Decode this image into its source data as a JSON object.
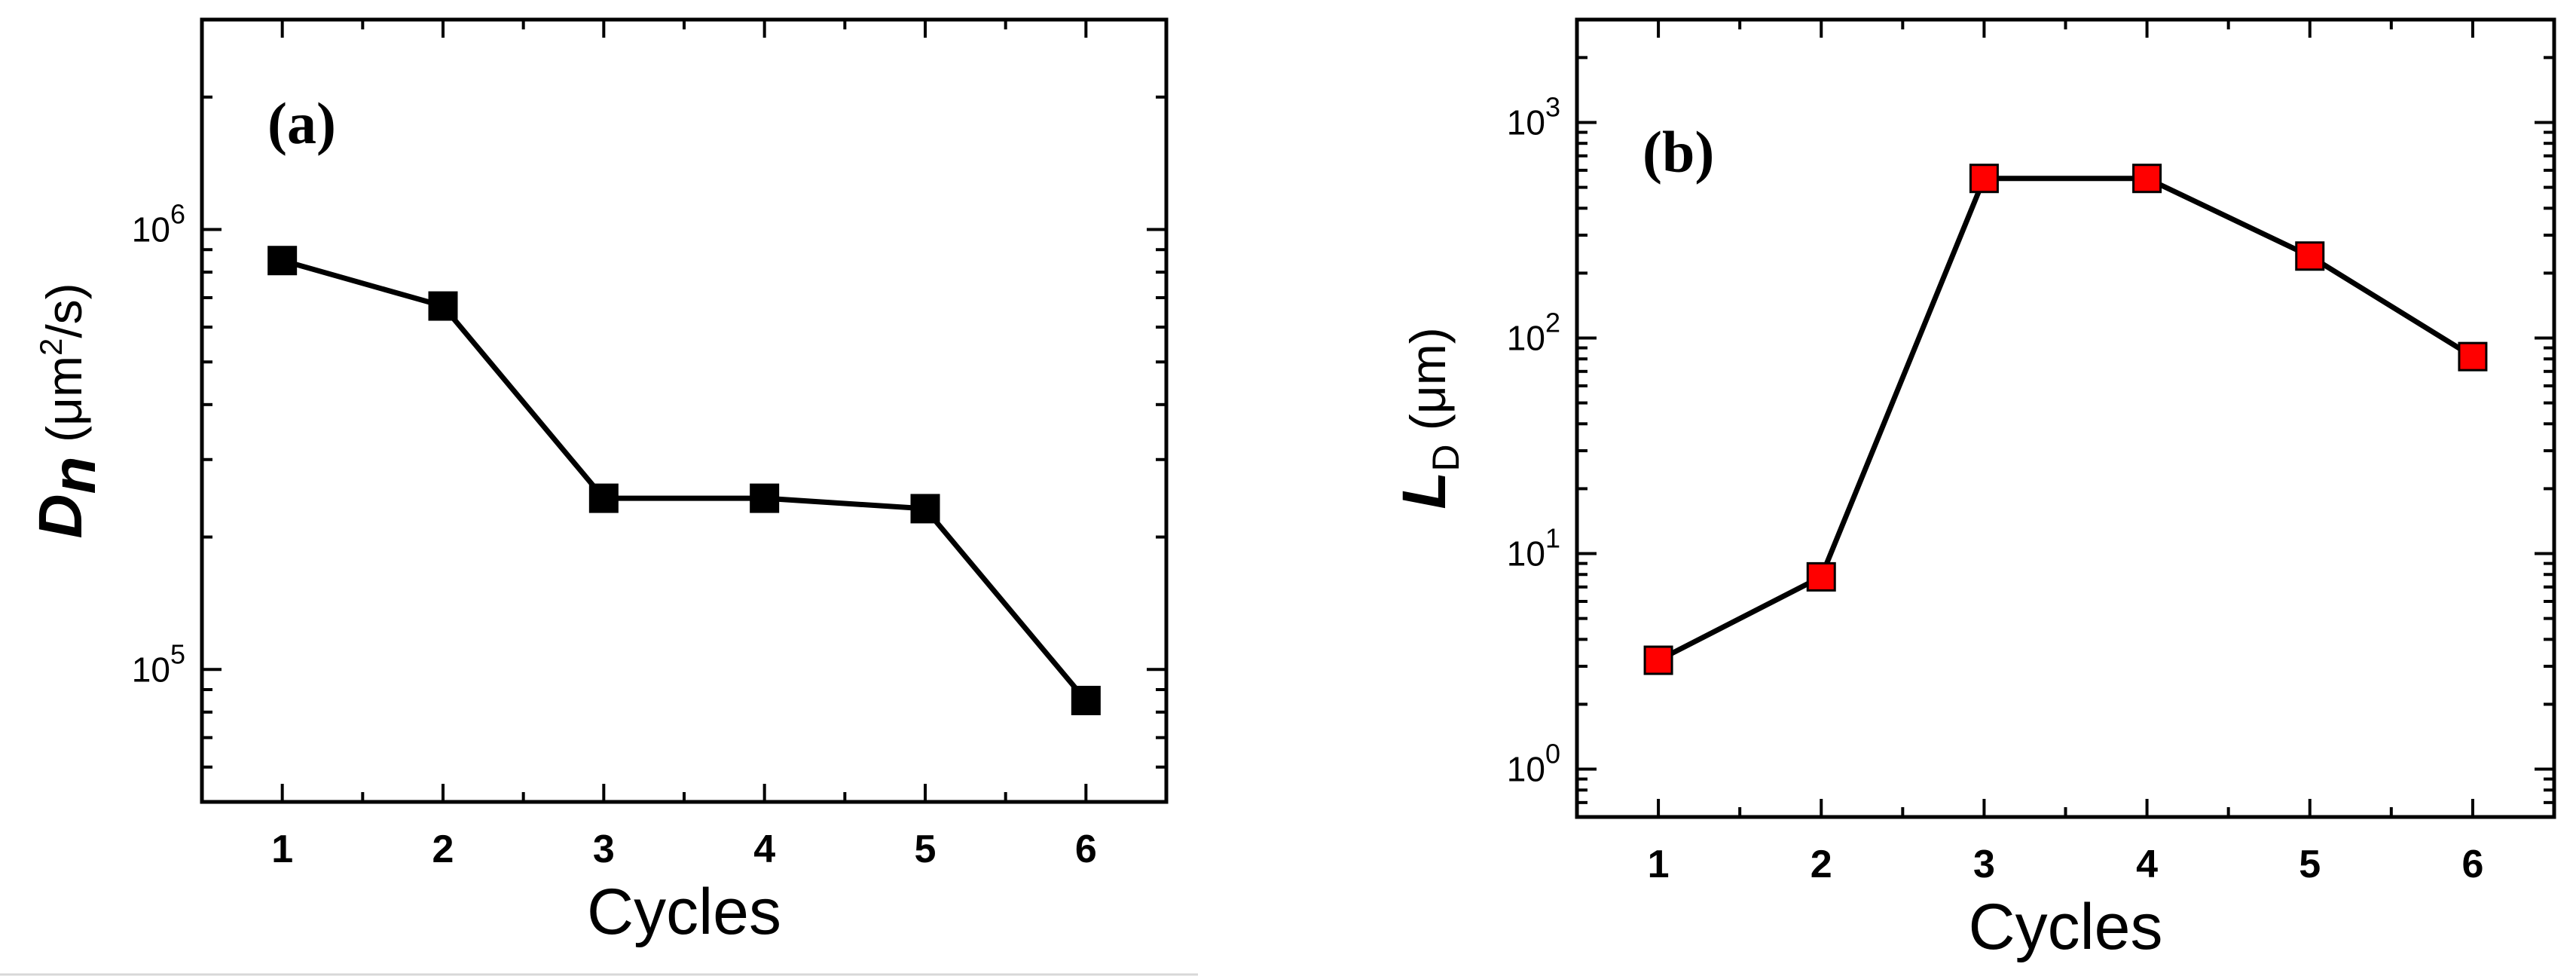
{
  "chart_data": [
    {
      "type": "line",
      "panel_label": "(a)",
      "x": [
        1,
        2,
        3,
        4,
        5,
        6
      ],
      "series": [
        {
          "values": [
            850000,
            670000,
            245000,
            245000,
            232000,
            85000
          ],
          "marker": "square",
          "color": "#000000"
        }
      ],
      "xlabel": "Cycles",
      "ylabel": {
        "main": "D",
        "sub": "n",
        "unit_pre": " (μm",
        "unit_sup": "2",
        "unit_post": "/s)"
      },
      "y_scale": "log",
      "ylim": [
        50000,
        3000000
      ],
      "xlim": [
        0.5,
        6.5
      ],
      "x_ticks": [
        "1",
        "2",
        "3",
        "4",
        "5",
        "6"
      ],
      "y_ticks": [
        {
          "value": 100000,
          "base": "10",
          "exp": "5"
        },
        {
          "value": 1000000,
          "base": "10",
          "exp": "6"
        }
      ],
      "grid": false
    },
    {
      "type": "line",
      "panel_label": "(b)",
      "x": [
        1,
        2,
        3,
        4,
        5,
        6
      ],
      "series": [
        {
          "values": [
            3.2,
            7.8,
            550,
            550,
            240,
            82
          ],
          "marker": "square",
          "color": "#ff0000"
        }
      ],
      "xlabel": "Cycles",
      "ylabel": {
        "main": "L",
        "sub": "D",
        "unit_pre": " (μm)",
        "unit_sup": "",
        "unit_post": ""
      },
      "y_scale": "log",
      "ylim": [
        0.6,
        3000
      ],
      "xlim": [
        0.5,
        6.5
      ],
      "x_ticks": [
        "1",
        "2",
        "3",
        "4",
        "5",
        "6"
      ],
      "y_ticks": [
        {
          "value": 1,
          "base": "10",
          "exp": "0"
        },
        {
          "value": 10,
          "base": "10",
          "exp": "1"
        },
        {
          "value": 100,
          "base": "10",
          "exp": "2"
        },
        {
          "value": 1000,
          "base": "10",
          "exp": "3"
        }
      ],
      "grid": false
    }
  ]
}
